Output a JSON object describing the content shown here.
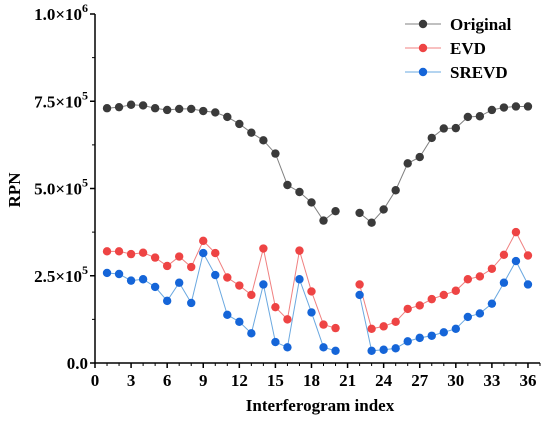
{
  "chart_data": {
    "type": "line",
    "xlabel": "Interferogram index",
    "ylabel": "RPN",
    "xlim": [
      0,
      37
    ],
    "ylim": [
      0,
      1000000
    ],
    "x_ticks": [
      0,
      3,
      6,
      9,
      12,
      15,
      18,
      21,
      24,
      27,
      30,
      33,
      36
    ],
    "y_ticks": [
      {
        "value": 0,
        "label": "0.0"
      },
      {
        "value": 250000,
        "label": "2.5×10",
        "exp": "5"
      },
      {
        "value": 500000,
        "label": "5.0×10",
        "exp": "5"
      },
      {
        "value": 750000,
        "label": "7.5×10",
        "exp": "5"
      },
      {
        "value": 1000000,
        "label": "1.0×10",
        "exp": "6"
      }
    ],
    "legend_position": "top-right",
    "grid": false,
    "x": [
      1,
      2,
      3,
      4,
      5,
      6,
      7,
      8,
      9,
      10,
      11,
      12,
      13,
      14,
      15,
      16,
      17,
      18,
      19,
      20,
      21,
      22,
      23,
      24,
      25,
      26,
      27,
      28,
      29,
      30,
      31,
      32,
      33,
      34,
      35,
      36
    ],
    "series": [
      {
        "name": "Original",
        "color": "#808080",
        "marker_color": "#3a3a3a",
        "values": [
          730000,
          733000,
          740000,
          738000,
          730000,
          725000,
          728000,
          728000,
          722000,
          718000,
          705000,
          685000,
          660000,
          638000,
          600000,
          510000,
          490000,
          460000,
          408000,
          435000,
          null,
          430000,
          402000,
          440000,
          495000,
          572000,
          590000,
          645000,
          672000,
          673000,
          705000,
          707000,
          725000,
          732000,
          735000,
          735000
        ]
      },
      {
        "name": "EVD",
        "color": "#f08080",
        "marker_color": "#ee4444",
        "values": [
          320000,
          320000,
          312000,
          316000,
          302000,
          278000,
          305000,
          275000,
          350000,
          315000,
          245000,
          222000,
          195000,
          328000,
          160000,
          125000,
          322000,
          205000,
          110000,
          100000,
          null,
          225000,
          98000,
          105000,
          118000,
          155000,
          165000,
          183000,
          195000,
          207000,
          240000,
          248000,
          270000,
          310000,
          375000,
          308000
        ]
      },
      {
        "name": "SREVD",
        "color": "#6aa8e0",
        "marker_color": "#1565d8",
        "values": [
          258000,
          255000,
          236000,
          240000,
          218000,
          178000,
          230000,
          172000,
          315000,
          252000,
          138000,
          118000,
          85000,
          225000,
          60000,
          45000,
          240000,
          145000,
          45000,
          35000,
          null,
          195000,
          35000,
          38000,
          42000,
          62000,
          72000,
          78000,
          88000,
          98000,
          132000,
          142000,
          170000,
          230000,
          292000,
          225000
        ]
      }
    ]
  }
}
